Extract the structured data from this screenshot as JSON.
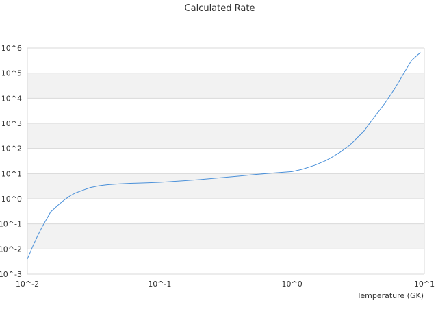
{
  "chart_data": {
    "type": "line",
    "title": "Calculated Rate",
    "xlabel": "Temperature (GK)",
    "ylabel": "",
    "x_scale": "log",
    "y_scale": "log",
    "xlim": [
      0.01,
      10
    ],
    "ylim": [
      0.001,
      1000000
    ],
    "x_ticks": [
      "10^-2",
      "10^-1",
      "10^0",
      "10^1"
    ],
    "y_ticks": [
      "10^-3",
      "10^-2",
      "10^-1",
      "10^0",
      "10^1",
      "10^2",
      "10^3",
      "10^4",
      "10^5",
      "10^6"
    ],
    "grid": "horizontal alternating bands",
    "band_color": "#f2f2f2",
    "series": [
      {
        "color": "#4a90d9",
        "x": [
          0.01,
          0.011,
          0.012,
          0.013,
          0.014,
          0.015,
          0.017,
          0.019,
          0.021,
          0.023,
          0.027,
          0.03,
          0.035,
          0.04,
          0.05,
          0.06,
          0.07,
          0.08,
          0.1,
          0.12,
          0.15,
          0.2,
          0.3,
          0.4,
          0.5,
          0.7,
          1.0,
          1.2,
          1.5,
          1.8,
          2.0,
          2.3,
          2.7,
          3.0,
          3.5,
          4.0,
          5.0,
          6.0,
          7.0,
          8.0,
          9.0,
          9.4
        ],
        "y": [
          0.004,
          0.013,
          0.035,
          0.08,
          0.16,
          0.3,
          0.55,
          0.9,
          1.3,
          1.7,
          2.3,
          2.8,
          3.3,
          3.6,
          3.9,
          4.1,
          4.2,
          4.3,
          4.5,
          4.8,
          5.2,
          5.8,
          7.0,
          8.0,
          9.0,
          10.5,
          12.0,
          15.0,
          22.0,
          33.0,
          45.0,
          70.0,
          130.0,
          220.0,
          500.0,
          1300.0,
          6000.0,
          25000.0,
          100000.0,
          320000.0,
          560000.0,
          650000.0
        ]
      }
    ]
  }
}
